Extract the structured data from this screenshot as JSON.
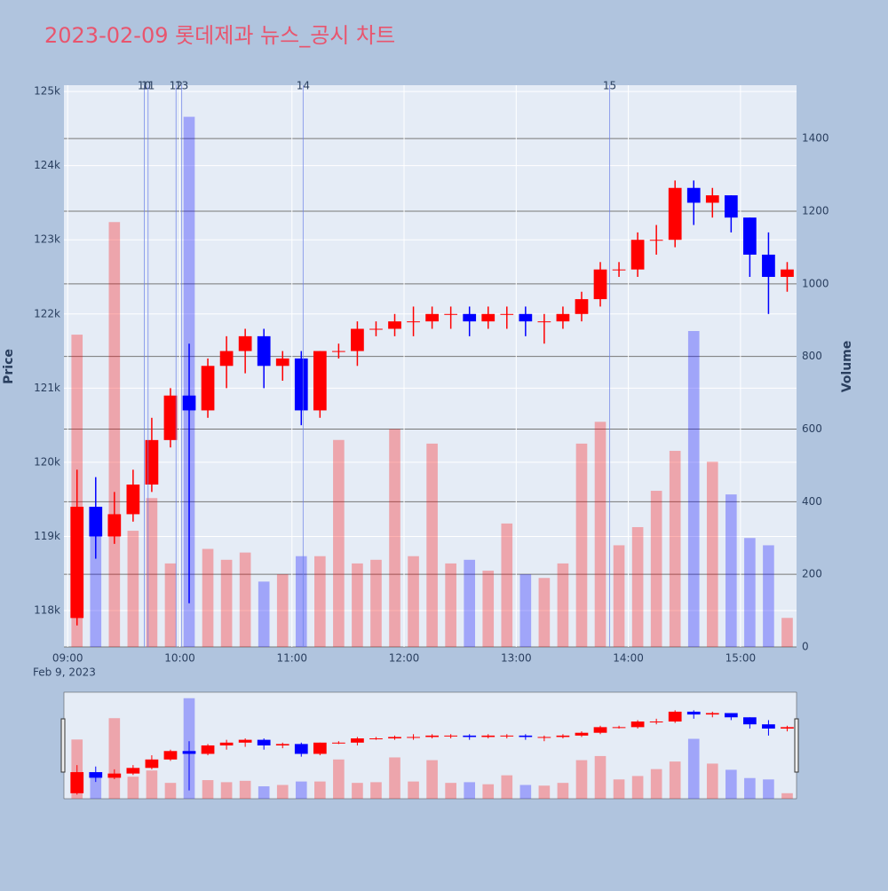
{
  "chart_data": {
    "type": "candlestick",
    "title": "2023-02-09 롯데제과 뉴스_공시 차트",
    "y_label": "Price",
    "y2_label": "Volume",
    "x_date_label": "Feb 9, 2023",
    "up_color": "#ff0000",
    "down_color": "#0000ff",
    "x": [
      "09:00",
      "09:10",
      "09:20",
      "09:30",
      "09:40",
      "09:50",
      "10:00",
      "10:10",
      "10:20",
      "10:30",
      "10:40",
      "10:50",
      "11:00",
      "11:10",
      "11:20",
      "11:30",
      "11:40",
      "11:50",
      "12:00",
      "12:10",
      "12:20",
      "12:30",
      "12:40",
      "12:50",
      "13:00",
      "13:10",
      "13:20",
      "13:30",
      "13:40",
      "13:50",
      "14:00",
      "14:10",
      "14:20",
      "14:30",
      "14:40",
      "14:50",
      "15:00",
      "15:10",
      "15:20"
    ],
    "open": [
      117900,
      119400,
      119000,
      119300,
      119700,
      120300,
      120900,
      120700,
      121300,
      121500,
      121700,
      121300,
      121400,
      120700,
      121500,
      121500,
      121800,
      121800,
      121900,
      121900,
      122000,
      122000,
      121900,
      122000,
      122000,
      121900,
      121900,
      122000,
      122200,
      122600,
      122600,
      123000,
      123000,
      123700,
      123500,
      123600,
      123300,
      122800,
      122500
    ],
    "high": [
      119900,
      119800,
      119600,
      119900,
      120600,
      121000,
      121600,
      121400,
      121700,
      121800,
      121800,
      121500,
      121500,
      121500,
      121600,
      121900,
      121900,
      122000,
      122100,
      122100,
      122100,
      122100,
      122100,
      122100,
      122100,
      122000,
      122100,
      122300,
      122700,
      122700,
      123100,
      123200,
      123800,
      123800,
      123700,
      123600,
      123300,
      123100,
      122700
    ],
    "low": [
      117800,
      118700,
      118900,
      119200,
      119600,
      120200,
      118100,
      120600,
      121000,
      121200,
      121000,
      121100,
      120500,
      120600,
      121400,
      121300,
      121700,
      121700,
      121700,
      121800,
      121800,
      121700,
      121800,
      121800,
      121700,
      121600,
      121800,
      121900,
      122100,
      122500,
      122500,
      122800,
      122900,
      123200,
      123300,
      123100,
      122500,
      122000,
      122300
    ],
    "close": [
      119400,
      119000,
      119300,
      119700,
      120300,
      120900,
      120700,
      121300,
      121500,
      121700,
      121300,
      121400,
      120700,
      121500,
      121500,
      121800,
      121800,
      121900,
      121900,
      122000,
      122000,
      121900,
      122000,
      122000,
      121900,
      121900,
      122000,
      122200,
      122600,
      122600,
      123000,
      123000,
      123700,
      123500,
      123600,
      123300,
      122800,
      122500,
      122600
    ],
    "volume": [
      860,
      380,
      1170,
      320,
      410,
      230,
      1460,
      270,
      240,
      260,
      180,
      200,
      250,
      250,
      570,
      230,
      240,
      600,
      250,
      560,
      230,
      240,
      210,
      340,
      200,
      190,
      230,
      560,
      620,
      280,
      330,
      430,
      540,
      870,
      510,
      420,
      300,
      280,
      80
    ],
    "news": [
      {
        "x": "09:41",
        "label": "10"
      },
      {
        "x": "09:43",
        "label": "11"
      },
      {
        "x": "09:58",
        "label": "12"
      },
      {
        "x": "10:01",
        "label": "13"
      },
      {
        "x": "11:06",
        "label": "14"
      },
      {
        "x": "13:50",
        "label": "15"
      }
    ],
    "xlim": [
      "08:58",
      "15:30"
    ],
    "xticks": [
      "09:00",
      "10:00",
      "11:00",
      "12:00",
      "13:00",
      "14:00",
      "15:00"
    ],
    "ylim": [
      117510,
      125085
    ],
    "yticks": [
      {
        "value": 118000,
        "label": "118k"
      },
      {
        "value": 119000,
        "label": "119k"
      },
      {
        "value": 120000,
        "label": "120k"
      },
      {
        "value": 121000,
        "label": "121k"
      },
      {
        "value": 122000,
        "label": "122k"
      },
      {
        "value": 123000,
        "label": "123k"
      },
      {
        "value": 124000,
        "label": "124k"
      },
      {
        "value": 125000,
        "label": "125k"
      }
    ],
    "y2lim": [
      0,
      1547
    ],
    "y2ticks": [
      0,
      200,
      400,
      600,
      800,
      1000,
      1200,
      1400
    ]
  }
}
